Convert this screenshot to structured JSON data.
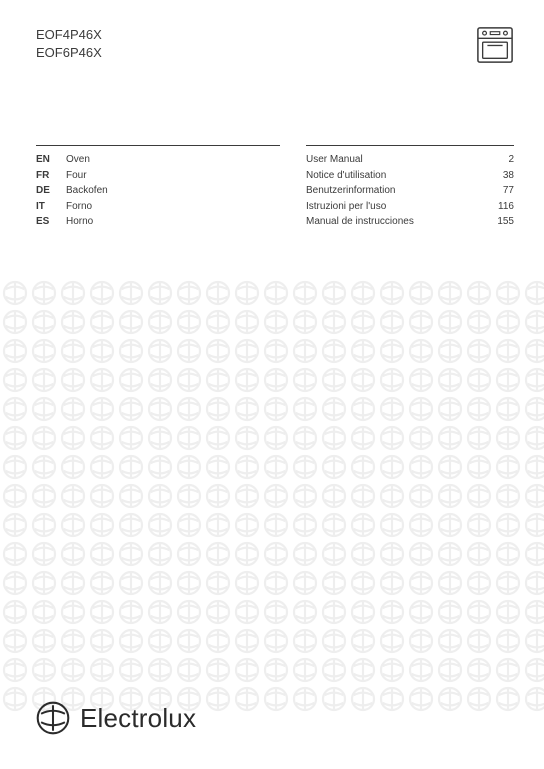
{
  "models": [
    "EOF4P46X",
    "EOF6P46X"
  ],
  "colors": {
    "text": "#3b3b3b",
    "rule": "#3b3b3b",
    "pattern": "#eeeeee",
    "background": "#ffffff",
    "brand": "#2b2b2b"
  },
  "languages": [
    {
      "code": "EN",
      "name": "Oven",
      "manual": "User Manual",
      "page": 2
    },
    {
      "code": "FR",
      "name": "Four",
      "manual": "Notice d'utilisation",
      "page": 38
    },
    {
      "code": "DE",
      "name": "Backofen",
      "manual": "Benutzerinformation",
      "page": 77
    },
    {
      "code": "IT",
      "name": "Forno",
      "manual": "Istruzioni per l'uso",
      "page": 116
    },
    {
      "code": "ES",
      "name": "Horno",
      "manual": "Manual de instrucciones",
      "page": 155
    }
  ],
  "brand": {
    "name": "Electrolux"
  },
  "pattern": {
    "cell_size": 26,
    "gap": 3,
    "rows": 15,
    "cols": 19,
    "stroke_width": 2.2
  },
  "icon": {
    "name": "oven"
  }
}
